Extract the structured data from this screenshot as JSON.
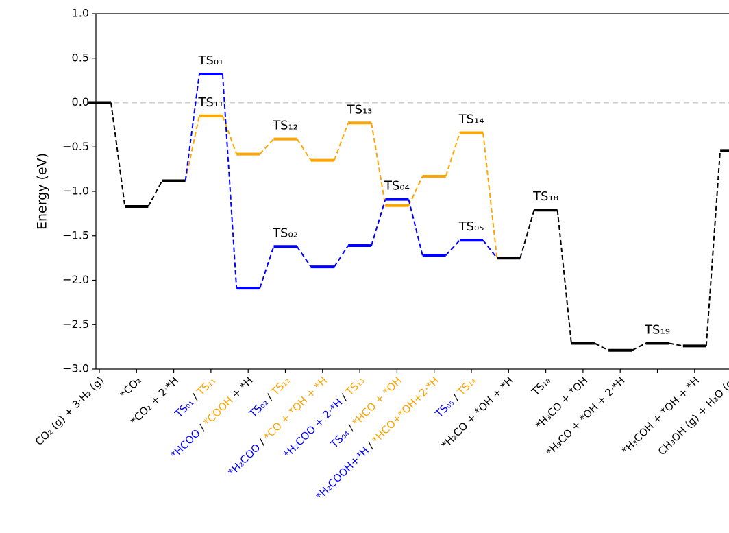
{
  "chart_data": {
    "type": "energy_profile",
    "ylabel": "Energy (eV)",
    "ylim": [
      -3.0,
      1.0
    ],
    "yticks": [
      {
        "value": -3.0,
        "label": "−3.0"
      },
      {
        "value": -2.5,
        "label": "−2.5"
      },
      {
        "value": -2.0,
        "label": "−2.0"
      },
      {
        "value": -1.5,
        "label": "−1.5"
      },
      {
        "value": -1.0,
        "label": "−1.0"
      },
      {
        "value": -0.5,
        "label": "−0.5"
      },
      {
        "value": 0.0,
        "label": "0.0"
      },
      {
        "value": 0.5,
        "label": "0.5"
      },
      {
        "value": 1.0,
        "label": "1.0"
      }
    ],
    "hline": 0,
    "hline_color": "#cccccc",
    "categories": [
      [
        {
          "text": "CO₂ (g) + 3·H₂ (g)",
          "color": "#000000"
        }
      ],
      [
        {
          "text": "*CO₂",
          "color": "#000000"
        }
      ],
      [
        {
          "text": "*CO₂ + 2·*H",
          "color": "#000000"
        }
      ],
      [
        {
          "text": "TS₀₁",
          "color": "#0000ff"
        },
        {
          "text": " / ",
          "color": "#000000"
        },
        {
          "text": "TS₁₁",
          "color": "#ffa500"
        }
      ],
      [
        {
          "text": "*HCOO",
          "color": "#0000ff"
        },
        {
          "text": " / ",
          "color": "#000000"
        },
        {
          "text": "*COOH",
          "color": "#ffa500"
        },
        {
          "text": " + *H",
          "color": "#000000"
        }
      ],
      [
        {
          "text": "TS₀₂",
          "color": "#0000ff"
        },
        {
          "text": " / ",
          "color": "#000000"
        },
        {
          "text": "TS₁₂",
          "color": "#ffa500"
        }
      ],
      [
        {
          "text": "*H₂COO",
          "color": "#0000ff"
        },
        {
          "text": " / ",
          "color": "#000000"
        },
        {
          "text": "*CO + *OH + *H",
          "color": "#ffa500"
        }
      ],
      [
        {
          "text": "*H₂COO + 2·*H",
          "color": "#0000ff"
        },
        {
          "text": " / ",
          "color": "#000000"
        },
        {
          "text": "TS₁₃",
          "color": "#ffa500"
        }
      ],
      [
        {
          "text": "TS₀₄",
          "color": "#0000ff"
        },
        {
          "text": " / ",
          "color": "#000000"
        },
        {
          "text": "*HCO + *OH",
          "color": "#ffa500"
        }
      ],
      [
        {
          "text": "*H₂COOH+*H",
          "color": "#0000ff"
        },
        {
          "text": " / ",
          "color": "#000000"
        },
        {
          "text": "*HCO+*OH+2·*H",
          "color": "#ffa500"
        }
      ],
      [
        {
          "text": "TS₀₅",
          "color": "#0000ff"
        },
        {
          "text": " / ",
          "color": "#000000"
        },
        {
          "text": "TS₁₄",
          "color": "#ffa500"
        }
      ],
      [
        {
          "text": "*H₂CO + *OH + *H",
          "color": "#000000"
        }
      ],
      [
        {
          "text": "TS₁₈",
          "color": "#000000"
        }
      ],
      [
        {
          "text": "*H₃CO + *OH",
          "color": "#000000"
        }
      ],
      [
        {
          "text": "*H₃CO + *OH + 2·*H",
          "color": "#000000"
        }
      ],
      null,
      [
        {
          "text": "*H₃COH + *OH + *H",
          "color": "#000000"
        }
      ],
      [
        {
          "text": "CH₃OH (g) + H₂O (g)",
          "color": "#000000"
        }
      ]
    ],
    "series": [
      {
        "color": "#ffa500",
        "values": [
          null,
          null,
          -0.88,
          -0.15,
          -0.58,
          -0.41,
          -0.65,
          -0.23,
          -1.16,
          -0.83,
          -0.34,
          -1.75,
          null,
          null,
          null,
          null,
          null,
          null
        ]
      },
      {
        "color": "#0000ff",
        "values": [
          null,
          null,
          -0.88,
          0.32,
          -2.09,
          -1.62,
          -1.85,
          -1.61,
          -1.09,
          -1.72,
          -1.55,
          -1.75,
          null,
          null,
          null,
          null,
          null,
          null
        ]
      },
      {
        "color": "#000000",
        "values": [
          0.0,
          -1.17,
          -0.88,
          null,
          null,
          null,
          null,
          null,
          null,
          null,
          null,
          -1.75,
          -1.21,
          -2.71,
          -2.79,
          -2.71,
          -2.74,
          -0.54
        ]
      }
    ],
    "annotations": [
      {
        "text": "TS₀₁",
        "series": 1,
        "index": 3
      },
      {
        "text": "TS₁₁",
        "series": 0,
        "index": 3
      },
      {
        "text": "TS₁₂",
        "series": 0,
        "index": 5
      },
      {
        "text": "TS₀₂",
        "series": 1,
        "index": 5
      },
      {
        "text": "TS₁₃",
        "series": 0,
        "index": 7
      },
      {
        "text": "TS₀₄",
        "series": 1,
        "index": 8
      },
      {
        "text": "TS₁₄",
        "series": 0,
        "index": 10
      },
      {
        "text": "TS₀₅",
        "series": 1,
        "index": 10
      },
      {
        "text": "TS₁₈",
        "series": 2,
        "index": 12
      },
      {
        "text": "TS₁₉",
        "series": 2,
        "index": 15
      }
    ]
  }
}
